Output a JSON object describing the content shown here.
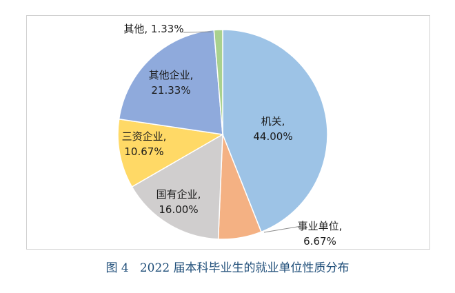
{
  "caption": "图 4   2022 届本科毕业生的就业单位性质分布",
  "chart_data": {
    "type": "pie",
    "title": "",
    "start_angle_deg": 0,
    "direction": "clockwise",
    "slices": [
      {
        "label": "机关",
        "value": 44.0,
        "display": "44.00%",
        "color": "#9dc3e6"
      },
      {
        "label": "事业单位",
        "value": 6.67,
        "display": "6.67%",
        "color": "#f4b183"
      },
      {
        "label": "国有企业",
        "value": 16.0,
        "display": "16.00%",
        "color": "#d0cece"
      },
      {
        "label": "三资企业",
        "value": 10.67,
        "display": "10.67%",
        "color": "#ffd966"
      },
      {
        "label": "其他企业",
        "value": 21.33,
        "display": "21.33%",
        "color": "#8faadc"
      },
      {
        "label": "其他",
        "value": 1.33,
        "display": "1.33%",
        "color": "#a9d18e"
      }
    ]
  }
}
